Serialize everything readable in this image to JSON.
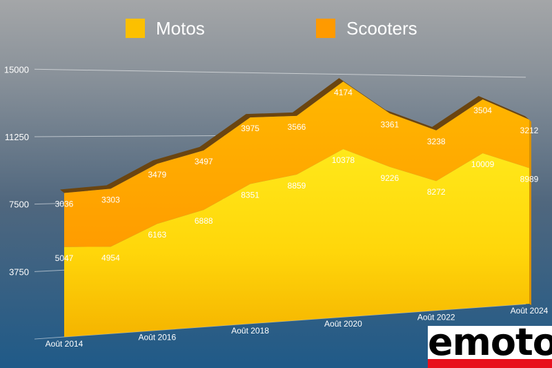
{
  "colors": {
    "motos": "#fcc000",
    "scooters": "#ff9a00",
    "top_edge": "#6b4510"
  },
  "legend": {
    "motos_label": "Motos",
    "scooters_label": "Scooters"
  },
  "logo": {
    "text": "emoto"
  },
  "chart_data": {
    "type": "area",
    "stacked": true,
    "title": "",
    "xlabel": "",
    "ylabel": "",
    "ylim": [
      0,
      15000
    ],
    "yticks": [
      "3750",
      "7500",
      "11250",
      "15000"
    ],
    "grid": true,
    "legend_position": "top",
    "categories": [
      "Août 2014",
      "",
      "Août 2016",
      "",
      "Août 2018",
      "",
      "Août 2020",
      "",
      "Août 2022",
      "",
      "Août 2024"
    ],
    "series": [
      {
        "name": "Motos",
        "color": "#fcc000",
        "values": [
          5047,
          4954,
          6163,
          6888,
          8351,
          8859,
          10378,
          9226,
          8272,
          10009,
          8989
        ]
      },
      {
        "name": "Scooters",
        "color": "#ff9a00",
        "values": [
          3036,
          3303,
          3479,
          3497,
          3975,
          3566,
          4174,
          3361,
          3238,
          3504,
          3212
        ]
      }
    ]
  }
}
